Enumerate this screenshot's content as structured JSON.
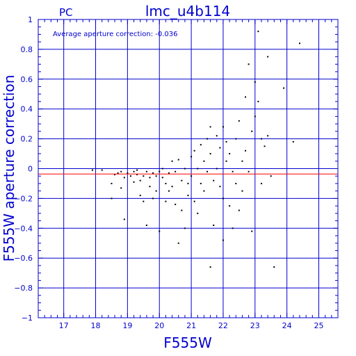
{
  "chart_data": {
    "type": "scatter",
    "corner_label": "PC",
    "title": "lmc_u4b114",
    "annotation": "Average aperture correction: -0.036",
    "xlabel": "F555W",
    "ylabel": "F555W aperture correction",
    "xlim": [
      16.2,
      25.6
    ],
    "ylim": [
      -1,
      1
    ],
    "x_ticks": [
      17,
      18,
      19,
      20,
      21,
      22,
      23,
      24,
      25
    ],
    "y_ticks": [
      -1,
      -0.8,
      -0.6,
      -0.4,
      -0.2,
      0,
      0.2,
      0.4,
      0.6,
      0.8,
      1
    ],
    "y_tick_labels": [
      "−1",
      "−0.8",
      "−0.6",
      "−0.4",
      "−0.2",
      "0",
      "0.2",
      "0.4",
      "0.6",
      "0.8",
      "1"
    ],
    "grid": true,
    "reference_line": {
      "y": -0.036,
      "color": "#ff0000"
    },
    "colors": {
      "axes": "#0000cc",
      "points": "#000000"
    },
    "points": [
      [
        17.9,
        -0.01
      ],
      [
        18.2,
        -0.01
      ],
      [
        18.5,
        -0.1
      ],
      [
        18.5,
        -0.2
      ],
      [
        18.6,
        -0.04
      ],
      [
        18.7,
        -0.03
      ],
      [
        18.8,
        -0.02
      ],
      [
        18.8,
        -0.13
      ],
      [
        18.9,
        -0.06
      ],
      [
        18.9,
        -0.34
      ],
      [
        19.0,
        -0.03
      ],
      [
        19.1,
        -0.05
      ],
      [
        19.2,
        -0.02
      ],
      [
        19.2,
        -0.09
      ],
      [
        19.3,
        -0.01
      ],
      [
        19.3,
        -0.04
      ],
      [
        19.4,
        -0.08
      ],
      [
        19.4,
        -0.18
      ],
      [
        19.5,
        -0.05
      ],
      [
        19.5,
        -0.22
      ],
      [
        19.6,
        -0.38
      ],
      [
        19.6,
        -0.02
      ],
      [
        19.7,
        -0.06
      ],
      [
        19.7,
        -0.12
      ],
      [
        19.8,
        -0.03
      ],
      [
        19.8,
        -0.2
      ],
      [
        19.9,
        -0.05
      ],
      [
        19.9,
        -0.15
      ],
      [
        20.0,
        -0.42
      ],
      [
        20.0,
        -0.02
      ],
      [
        20.1,
        -0.06
      ],
      [
        20.1,
        0.0
      ],
      [
        20.2,
        -0.1
      ],
      [
        20.2,
        -0.22
      ],
      [
        20.3,
        -0.03
      ],
      [
        20.3,
        -0.15
      ],
      [
        20.4,
        0.05
      ],
      [
        20.4,
        -0.12
      ],
      [
        20.5,
        -0.24
      ],
      [
        20.5,
        -0.02
      ],
      [
        20.6,
        -0.5
      ],
      [
        20.6,
        0.06
      ],
      [
        20.7,
        -0.08
      ],
      [
        20.7,
        -0.28
      ],
      [
        20.8,
        -0.4
      ],
      [
        20.8,
        0.0
      ],
      [
        20.9,
        -0.1
      ],
      [
        20.9,
        -0.18
      ],
      [
        21.0,
        0.08
      ],
      [
        21.0,
        -0.05
      ],
      [
        21.1,
        0.12
      ],
      [
        21.1,
        -0.22
      ],
      [
        21.2,
        0.0
      ],
      [
        21.2,
        -0.3
      ],
      [
        21.3,
        0.16
      ],
      [
        21.3,
        -0.1
      ],
      [
        21.4,
        0.05
      ],
      [
        21.4,
        -0.15
      ],
      [
        21.5,
        0.2
      ],
      [
        21.5,
        -0.02
      ],
      [
        21.6,
        -0.66
      ],
      [
        21.6,
        0.28
      ],
      [
        21.6,
        0.1
      ],
      [
        21.7,
        -0.08
      ],
      [
        21.7,
        -0.38
      ],
      [
        21.8,
        0.22
      ],
      [
        21.8,
        0.0
      ],
      [
        21.9,
        -0.12
      ],
      [
        21.9,
        0.14
      ],
      [
        22.0,
        0.28
      ],
      [
        22.0,
        -0.2
      ],
      [
        22.0,
        -0.48
      ],
      [
        22.1,
        0.05
      ],
      [
        22.1,
        0.18
      ],
      [
        22.2,
        -0.25
      ],
      [
        22.2,
        0.1
      ],
      [
        22.3,
        -0.02
      ],
      [
        22.3,
        -0.4
      ],
      [
        22.4,
        0.2
      ],
      [
        22.4,
        -0.1
      ],
      [
        22.5,
        0.32
      ],
      [
        22.5,
        -0.28
      ],
      [
        22.6,
        0.05
      ],
      [
        22.6,
        -0.15
      ],
      [
        22.7,
        0.48
      ],
      [
        22.7,
        0.12
      ],
      [
        22.8,
        0.7
      ],
      [
        22.8,
        -0.02
      ],
      [
        22.9,
        -0.42
      ],
      [
        22.9,
        0.25
      ],
      [
        23.0,
        0.58
      ],
      [
        23.0,
        0.35
      ],
      [
        23.1,
        0.92
      ],
      [
        23.1,
        0.45
      ],
      [
        23.2,
        -0.1
      ],
      [
        23.2,
        0.2
      ],
      [
        23.3,
        0.15
      ],
      [
        23.4,
        0.75
      ],
      [
        23.4,
        0.22
      ],
      [
        23.5,
        -0.05
      ],
      [
        23.6,
        -0.66
      ],
      [
        23.9,
        0.54
      ],
      [
        24.2,
        0.18
      ],
      [
        24.4,
        0.84
      ]
    ]
  }
}
